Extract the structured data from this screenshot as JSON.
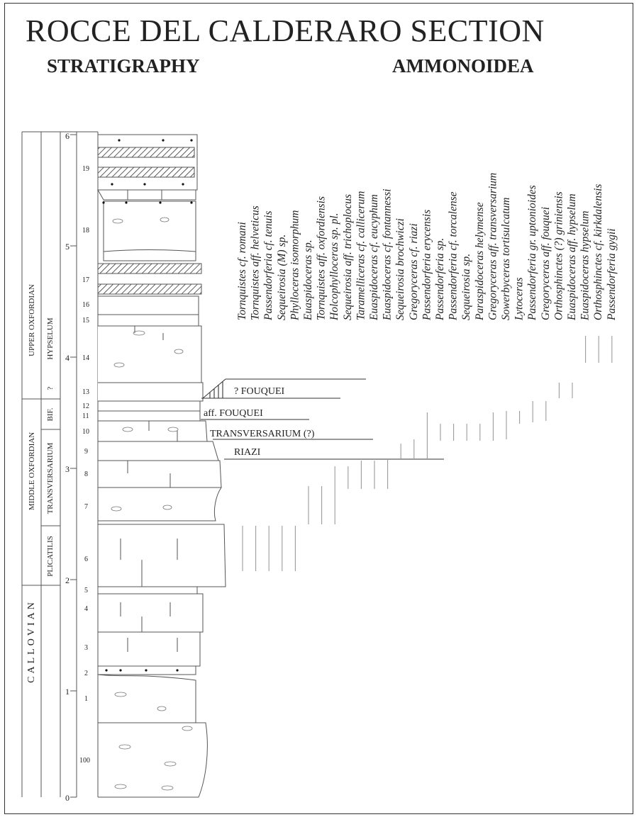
{
  "title": "ROCCE DEL CALDERARO SECTION",
  "headings": {
    "stratigraphy": "STRATIGRAPHY",
    "ammonoidea": "AMMONOIDEA"
  },
  "stages": [
    "UPPER OXFORDIAN",
    "MIDDLE OXFORDIAN",
    "CALLOVIAN"
  ],
  "zones": [
    "?",
    "HYPSELUM",
    "BIF.",
    "TRANSVERSARIUM",
    "PLICATILIS"
  ],
  "scale_ticks": [
    "0",
    "1",
    "2",
    "3",
    "4",
    "5",
    "6"
  ],
  "beds": [
    "19",
    "18",
    "17",
    "16",
    "15",
    "14",
    "13",
    "12",
    "11",
    "10",
    "9",
    "8",
    "7",
    "6",
    "5",
    "4",
    "3",
    "2",
    "1",
    "100"
  ],
  "horizons": [
    "? FOUQUEI",
    "aff. FOUQUEI",
    "TRANSVERSARIUM (?)",
    "RIAZI"
  ],
  "species": [
    "Tornquistes cf. romani",
    "Tornquistes aff. helveticus",
    "Passendorferia cf. tenuis",
    "Sequeirosia (M) sp.",
    "Phylloceras isomorphum",
    "Euaspidoceras sp.",
    "Tornquistes aff. oxfordiensis",
    "Holcophylloceras sp. pl.",
    "Sequeirosia aff. trichoplocus",
    "Taramelliceras cf. callicerum",
    "Euaspidoceras cf. eucyphum",
    "Euaspidoceras cf. fontannessi",
    "Sequeirosia brochwiczi",
    "Gregoryceras cf. riazi",
    "Passendorferia erycensis",
    "Passendorferia sp.",
    "Passendorferia cf. torcalense",
    "Sequeirosia sp.",
    "Paraspidoceras helymense",
    "Gregoryceras aff. transversarium",
    "Sowerbyceras tortisulcatum",
    "Lytoceras",
    "Passendorferia gr. uptonioides",
    "Gregoryceras aff. fouquei",
    "Orthosphinctes (?) griniensis",
    "Euaspidoceras aff. hypselum",
    "Euaspidoceras hypselum",
    "Orthosphinctes cf. kirkdalensis",
    "Passendorferia gygii"
  ]
}
